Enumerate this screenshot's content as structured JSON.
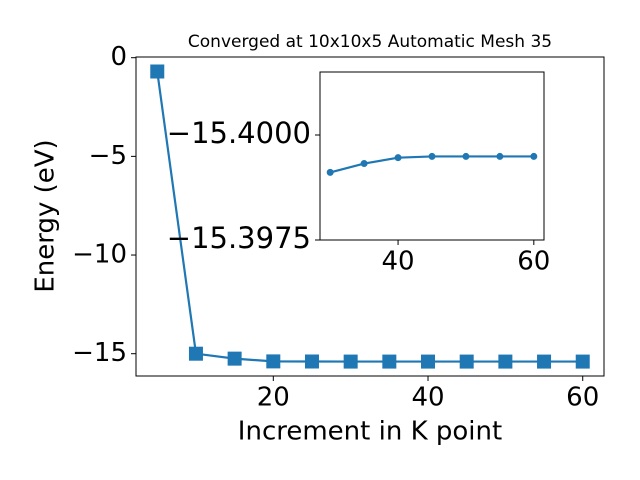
{
  "chart_data": [
    {
      "type": "line",
      "title": "Converged at 10x10x5 Automatic Mesh 35",
      "x_label": "Increment in K point",
      "y_label": "Energy (eV)",
      "x": [
        5,
        10,
        15,
        20,
        25,
        30,
        35,
        40,
        45,
        50,
        55,
        60
      ],
      "series": [
        {
          "color": "#1f77b4",
          "marker": "square",
          "values": [
            -0.7,
            -15.0,
            -15.25,
            -15.39,
            -15.395,
            -15.39911,
            -15.39932,
            -15.39946,
            -15.39949,
            -15.39949,
            -15.39949,
            -15.39949
          ]
        }
      ],
      "xlim": [
        2.25,
        62.75
      ],
      "xticks": [
        20,
        40,
        60
      ],
      "ylim": [
        -16.13,
        0.035
      ],
      "yticks": [
        {
          "value": -15,
          "label": "−15"
        },
        {
          "value": -10,
          "label": "−10"
        },
        {
          "value": -5,
          "label": "−5"
        },
        0
      ]
    },
    {
      "type": "line",
      "x": [
        30,
        35,
        40,
        45,
        50,
        55,
        60
      ],
      "series": [
        {
          "color": "#1f77b4",
          "marker": "circle",
          "values": [
            -15.39911,
            -15.39932,
            -15.39946,
            -15.39949,
            -15.39949,
            -15.39949,
            -15.39949
          ]
        }
      ],
      "xlim": [
        28.5,
        61.5
      ],
      "xticks": [
        40,
        60
      ],
      "ylim": [
        -15.3975,
        -15.4015
      ],
      "yticks": [
        {
          "value": -15.4,
          "label": "−15.4000"
        },
        {
          "value": -15.3975,
          "label": "−15.3975"
        }
      ]
    }
  ]
}
